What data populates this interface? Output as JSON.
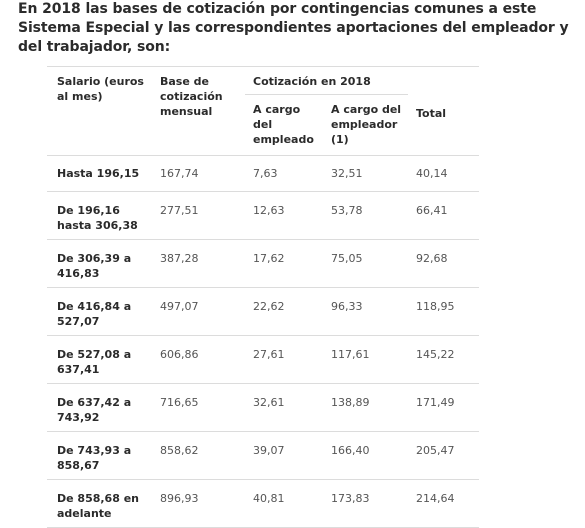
{
  "intro": {
    "text": "En 2018 las bases de cotización por contingencias comunes a este Sistema Especial y las correspondientes aportaciones del empleador y del trabajador, son:"
  },
  "table": {
    "headers": {
      "salary": "Salario (euros al mes)",
      "base": "Base de cotización mensual",
      "group": "Cotización en 2018",
      "employee": "A cargo del empleado",
      "employer": "A cargo del empleador (1)",
      "total": "Total"
    },
    "rows": [
      {
        "salary": "Hasta 196,15",
        "base": "167,74",
        "employee": "7,63",
        "employer": "32,51",
        "total": "40,14"
      },
      {
        "salary": "De 196,16 hasta 306,38",
        "base": "277,51",
        "employee": "12,63",
        "employer": "53,78",
        "total": "66,41"
      },
      {
        "salary": "De 306,39 a 416,83",
        "base": "387,28",
        "employee": "17,62",
        "employer": "75,05",
        "total": "92,68"
      },
      {
        "salary": "De 416,84 a 527,07",
        "base": "497,07",
        "employee": "22,62",
        "employer": "96,33",
        "total": "118,95"
      },
      {
        "salary": "De 527,08 a 637,41",
        "base": "606,86",
        "employee": "27,61",
        "employer": "117,61",
        "total": "145,22"
      },
      {
        "salary": "De 637,42 a 743,92",
        "base": "716,65",
        "employee": "32,61",
        "employer": "138,89",
        "total": "171,49"
      },
      {
        "salary": "De 743,93 a 858,67",
        "base": "858,62",
        "employee": "39,07",
        "employer": "166,40",
        "total": "205,47"
      },
      {
        "salary": "De 858,68 en adelante",
        "base": "896,93",
        "employee": "40,81",
        "employer": "173,83",
        "total": "214,64"
      }
    ]
  }
}
